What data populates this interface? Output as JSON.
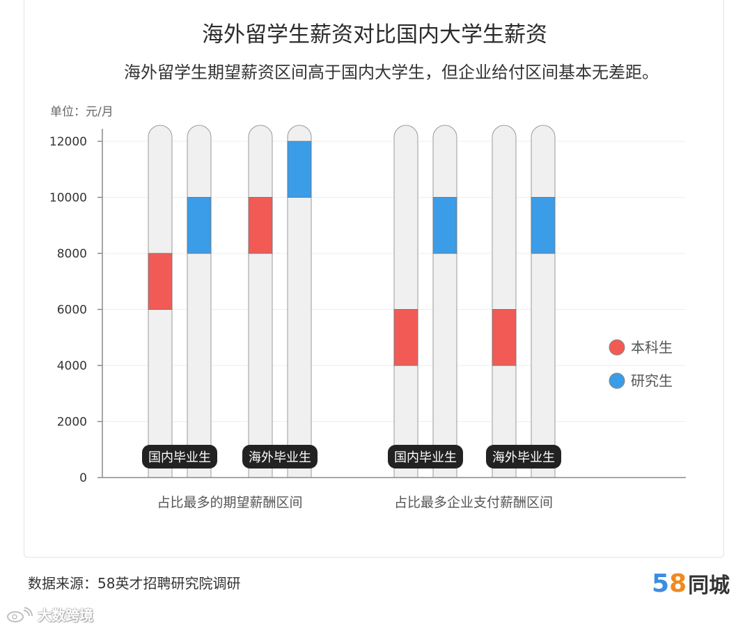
{
  "header": {
    "title": "海外留学生薪资对比国内大学生薪资",
    "subtitle": "海外留学生期望薪资区间高于国内大学生，但企业给付区间基本无差距。"
  },
  "footer": {
    "source": "数据来源：58英才招聘研究院调研",
    "logo_number_5": "5",
    "logo_number_8": "8",
    "logo_text": "同城",
    "watermark": "大数跨境"
  },
  "colors": {
    "undergrad": "#f25b55",
    "graduate": "#3b9ce8",
    "track": "#f0f0f0",
    "track_stroke": "#9a9a9a",
    "pill": "#222222"
  },
  "chart_data": {
    "type": "bar",
    "subtype": "floating-range",
    "title": "海外留学生薪资对比国内大学生薪资",
    "unit_label": "单位：元/月",
    "ylim": [
      0,
      12000
    ],
    "yticks": [
      0,
      2000,
      4000,
      6000,
      8000,
      10000,
      12000
    ],
    "grid": true,
    "legend_position": "right",
    "legend": [
      {
        "name": "本科生",
        "color": "#f25b55"
      },
      {
        "name": "研究生",
        "color": "#3b9ce8"
      }
    ],
    "groups": [
      {
        "label": "占比最多的期望薪酬区间",
        "subgroups": [
          {
            "label": "国内毕业生",
            "bars": [
              {
                "series": "本科生",
                "low": 6000,
                "high": 8000
              },
              {
                "series": "研究生",
                "low": 8000,
                "high": 10000
              }
            ]
          },
          {
            "label": "海外毕业生",
            "bars": [
              {
                "series": "本科生",
                "low": 8000,
                "high": 10000
              },
              {
                "series": "研究生",
                "low": 10000,
                "high": 12000
              }
            ]
          }
        ]
      },
      {
        "label": "占比最多企业支付薪酬区间",
        "subgroups": [
          {
            "label": "国内毕业生",
            "bars": [
              {
                "series": "本科生",
                "low": 4000,
                "high": 6000
              },
              {
                "series": "研究生",
                "low": 8000,
                "high": 10000
              }
            ]
          },
          {
            "label": "海外毕业生",
            "bars": [
              {
                "series": "本科生",
                "low": 4000,
                "high": 6000
              },
              {
                "series": "研究生",
                "low": 8000,
                "high": 10000
              }
            ]
          }
        ]
      }
    ]
  }
}
